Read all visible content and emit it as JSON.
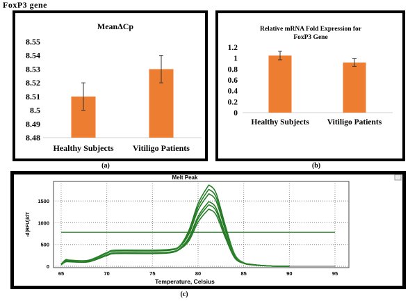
{
  "figure_title": "FoxP3 gene",
  "chart_data": [
    {
      "id": "a",
      "caption": "(a)",
      "type": "bar",
      "title": "MeanΔCp",
      "categories": [
        "Healthy Subjects",
        "Vitiligo Patients"
      ],
      "values": [
        8.51,
        8.53
      ],
      "errors": [
        0.01,
        0.01
      ],
      "ylim": [
        8.48,
        8.55
      ],
      "yticks": [
        "8.48",
        "8.49",
        "8.5",
        "8.51",
        "8.52",
        "8.53",
        "8.54",
        "8.55"
      ],
      "bar_color": "#ed7d31",
      "grid": false
    },
    {
      "id": "b",
      "caption": "(b)",
      "type": "bar",
      "title": "Relative mRNA Fold Expression for",
      "title_line2": "FoxP3 Gene",
      "categories": [
        "Healthy Subjects",
        "Vitiligo Patients"
      ],
      "values": [
        1.05,
        0.92
      ],
      "errors": [
        0.08,
        0.07
      ],
      "ylim": [
        0,
        1.2
      ],
      "yticks": [
        "0",
        "0.2",
        "0.4",
        "0.6",
        "0.8",
        "1",
        "1.2"
      ],
      "bar_color": "#ed7d31",
      "grid": false
    },
    {
      "id": "c",
      "caption": "(c)",
      "type": "line",
      "title": "Melt Peak",
      "xlabel": "Temperature, Celsius",
      "ylabel": "-d(RFU)/dT",
      "xlim": [
        64,
        96
      ],
      "ylim": [
        -60,
        1900
      ],
      "xticks": [
        "65",
        "70",
        "75",
        "80",
        "85",
        "90",
        "95"
      ],
      "yticks": [
        "0",
        "500",
        "1000",
        "1500"
      ],
      "threshold": 780,
      "grid": true,
      "line_color": "#2e8b2e",
      "x": [
        65,
        65.5,
        66,
        68,
        70,
        71,
        75,
        77,
        78,
        79,
        80,
        81,
        81.3,
        82,
        83,
        84,
        85,
        86,
        88,
        90
      ],
      "series": [
        {
          "values": [
            50,
            150,
            140,
            140,
            315,
            370,
            370,
            390,
            470,
            830,
            1440,
            1810,
            1850,
            1665,
            925,
            280,
            80,
            40,
            5,
            0
          ]
        },
        {
          "values": [
            50,
            145,
            135,
            135,
            305,
            360,
            360,
            380,
            460,
            790,
            1365,
            1715,
            1750,
            1575,
            875,
            265,
            80,
            40,
            5,
            0
          ]
        },
        {
          "values": [
            45,
            140,
            130,
            130,
            300,
            350,
            350,
            370,
            450,
            740,
            1290,
            1615,
            1650,
            1485,
            825,
            250,
            75,
            35,
            5,
            0
          ]
        },
        {
          "values": [
            40,
            120,
            115,
            115,
            265,
            310,
            310,
            330,
            410,
            660,
            1145,
            1440,
            1470,
            1325,
            735,
            220,
            70,
            35,
            5,
            0
          ]
        },
        {
          "values": [
            40,
            115,
            110,
            110,
            255,
            300,
            300,
            320,
            400,
            630,
            1090,
            1370,
            1400,
            1260,
            700,
            210,
            70,
            35,
            5,
            0
          ]
        },
        {
          "values": [
            35,
            100,
            100,
            100,
            245,
            290,
            290,
            310,
            390,
            585,
            1015,
            1275,
            1300,
            1170,
            650,
            195,
            65,
            30,
            5,
            0
          ]
        }
      ]
    }
  ]
}
